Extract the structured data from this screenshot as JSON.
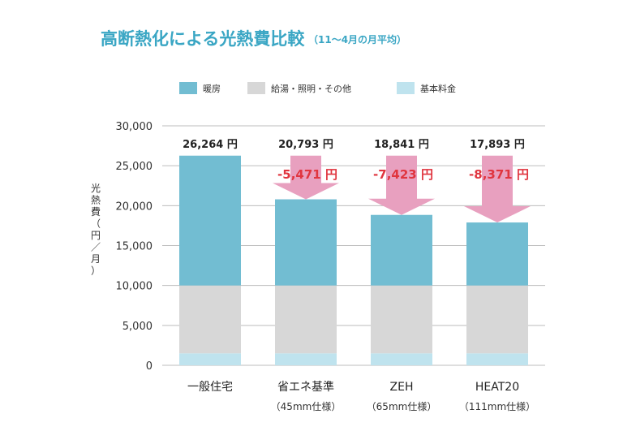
{
  "colors": {
    "heating": "#72bdd2",
    "other": "#d7d7d7",
    "base": "#bfe3ee",
    "arrow": "#e8a0bf",
    "diff_text": "#e0353f",
    "title": "#3aa6c4"
  },
  "chart_data": {
    "type": "bar",
    "stacked": true,
    "title": "高断熱化による光熱費比較",
    "subtitle": "（11～4月の月平均）",
    "ylabel": "光熱費（円／月）",
    "ylim": [
      0,
      30000
    ],
    "yticks": [
      "0",
      "5,000",
      "10,000",
      "15,000",
      "20,000",
      "25,000",
      "30,000"
    ],
    "ytick_values": [
      0,
      5000,
      10000,
      15000,
      20000,
      25000,
      30000
    ],
    "grid": true,
    "legend_position": "top",
    "categories": [
      "一般住宅",
      "省エネ基準",
      "ZEH",
      "HEAT20"
    ],
    "category_sub": [
      "",
      "（45mm仕様）",
      "（65mm仕様）",
      "（111mm仕様）"
    ],
    "series": [
      {
        "name": "基本料金",
        "color_key": "base",
        "values": [
          1500,
          1500,
          1500,
          1500
        ]
      },
      {
        "name": "給湯・照明・その他",
        "color_key": "other",
        "values": [
          8500,
          8500,
          8500,
          8500
        ]
      },
      {
        "name": "暖房",
        "color_key": "heating",
        "values": [
          16264,
          10793,
          8841,
          7893
        ]
      }
    ],
    "totals": [
      26264,
      20793,
      18841,
      17893
    ],
    "total_labels": [
      "26,264 円",
      "20,793 円",
      "18,841 円",
      "17,893 円"
    ],
    "difference_labels": [
      "",
      "-5,471 円",
      "-7,423 円",
      "-8,371 円"
    ]
  }
}
